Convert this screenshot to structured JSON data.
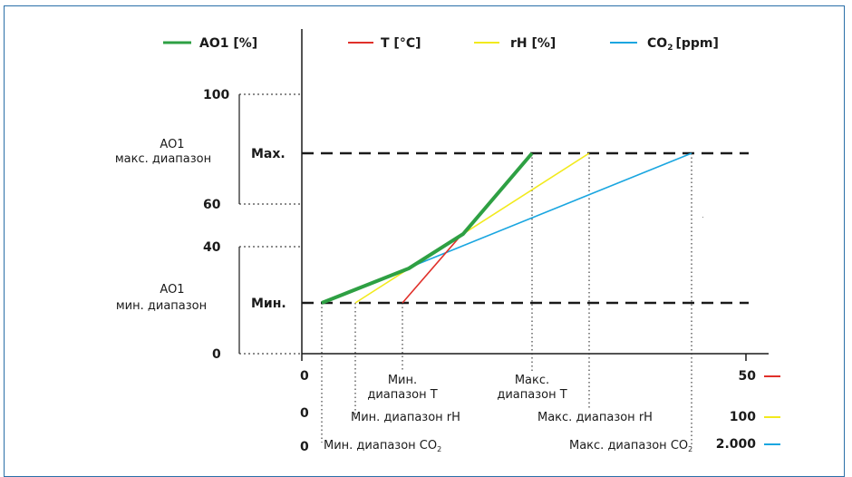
{
  "legend": {
    "ao1": {
      "label": "AO1 [%]",
      "color": "#2ea043"
    },
    "t": {
      "label": "T [°C]",
      "color": "#e0302a"
    },
    "rh": {
      "label": "rH [%]",
      "color": "#f2ea1d"
    },
    "co2": {
      "label_main": "CO",
      "label_sub": "2",
      "label_tail": "[ppm]",
      "color": "#1aa6e0"
    }
  },
  "y_axis": {
    "ticks": [
      "100",
      "60",
      "40",
      "0"
    ],
    "max_label": "Max.",
    "min_label": "Мин.",
    "max_range": {
      "line1": "AO1",
      "line2": "макс. диапазон"
    },
    "min_range": {
      "line1": "AO1",
      "line2": "мин. диапазон"
    }
  },
  "x_axis": {
    "rows": [
      {
        "zero": "0",
        "max": "50",
        "color": "#e0302a"
      },
      {
        "zero": "0",
        "max": "100",
        "color": "#f2ea1d"
      },
      {
        "zero": "0",
        "max": "2.000",
        "color": "#1aa6e0"
      }
    ],
    "t_min": {
      "line1": "Мин.",
      "line2": "диапазон T"
    },
    "t_max": {
      "line1": "Макс.",
      "line2": "диапазон T"
    },
    "rh_min": "Мин. диапазон rH",
    "rh_max": "Макс. диапазон rH",
    "co2_min": {
      "main": "Мин. диапазон CO",
      "sub": "2"
    },
    "co2_max": {
      "main": "Макс. диапазон CO",
      "sub": "2"
    }
  },
  "chart_data": {
    "type": "line",
    "ylim": [
      0,
      100
    ],
    "series": [
      {
        "name": "AO1 [%]",
        "color": "#2ea043"
      },
      {
        "name": "T [°C]",
        "color": "#e0302a"
      },
      {
        "name": "rH [%]",
        "color": "#f2ea1d"
      },
      {
        "name": "CO2 [ppm]",
        "color": "#1aa6e0"
      }
    ]
  }
}
